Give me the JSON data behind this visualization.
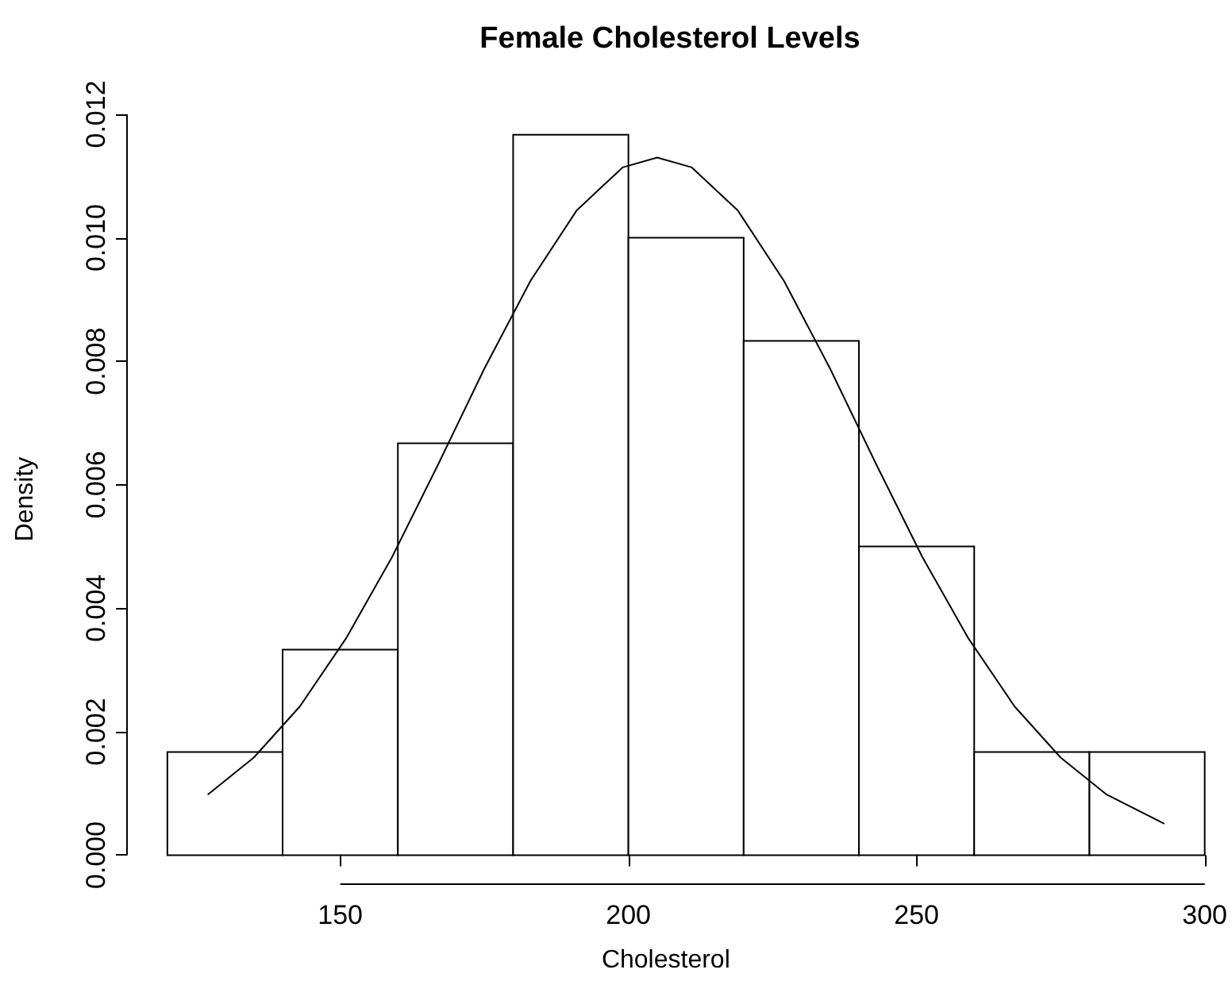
{
  "chart_data": {
    "type": "histogram",
    "title": "Female Cholesterol Levels",
    "xlabel": "Cholesterol",
    "ylabel": "Density",
    "bins": [
      120,
      140,
      160,
      180,
      200,
      220,
      240,
      260,
      280,
      300
    ],
    "values": [
      0.00167,
      0.00333,
      0.00667,
      0.01167,
      0.01,
      0.00833,
      0.005,
      0.00167,
      0.00167
    ],
    "color": "#ffffff",
    "series": [
      {
        "type": "line",
        "color": "#000000",
        "x": [
          127,
          135,
          143,
          151,
          159,
          167,
          175,
          183,
          191,
          199,
          205,
          211,
          219,
          227,
          235,
          243,
          251,
          259,
          267,
          275,
          283,
          293
        ],
        "values": [
          0.00098,
          0.00158,
          0.00241,
          0.00351,
          0.00483,
          0.00633,
          0.00788,
          0.0093,
          0.01044,
          0.01114,
          0.0113,
          0.01114,
          0.01044,
          0.0093,
          0.00788,
          0.00633,
          0.00483,
          0.00351,
          0.00241,
          0.00158,
          0.00098,
          0.00051
        ]
      }
    ],
    "xlim": [
      113,
      300
    ],
    "ylim": [
      -0.00047,
      0.012
    ],
    "xticks": [
      150,
      200,
      250,
      300
    ],
    "yticks": [
      {
        "value": 0,
        "label": "0.000"
      },
      {
        "value": 0.002,
        "label": "0.002"
      },
      {
        "value": 0.004,
        "label": "0.004"
      },
      {
        "value": 0.006,
        "label": "0.006"
      },
      {
        "value": 0.008,
        "label": "0.008"
      },
      {
        "value": 0.01,
        "label": "0.010"
      },
      {
        "value": 0.012,
        "label": "0.012"
      }
    ],
    "grid": false
  }
}
